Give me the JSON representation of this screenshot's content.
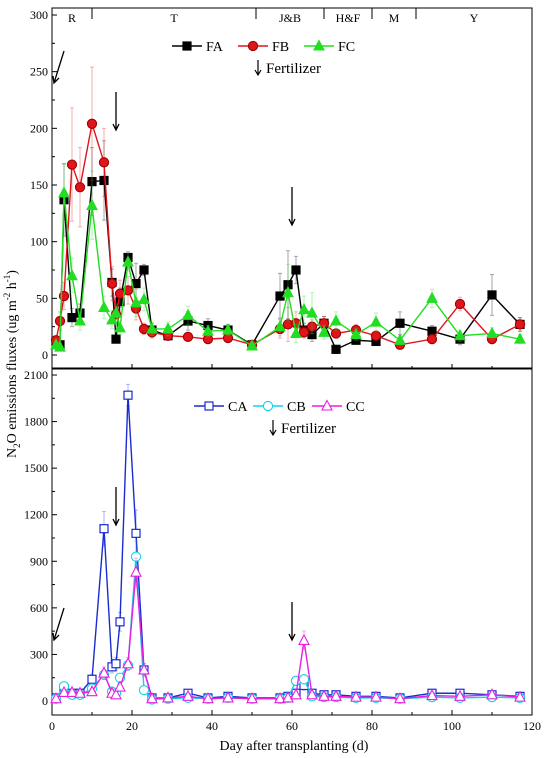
{
  "figure": {
    "ylabel": "N2O emissions fluxes (ug m-2 h-1)",
    "xlabel": "Day after transplanting (d)"
  },
  "chart_data": [
    {
      "type": "line",
      "panel": "top",
      "xlim": [
        0,
        120
      ],
      "ylim": [
        0,
        300
      ],
      "yticks": [
        0,
        50,
        100,
        150,
        200,
        250,
        300
      ],
      "xticks": [
        0,
        20,
        40,
        60,
        80,
        100,
        120
      ],
      "legend_position": "top-center",
      "stages": [
        {
          "label": "R",
          "start": 0,
          "end": 10
        },
        {
          "label": "T",
          "start": 10,
          "end": 51
        },
        {
          "label": "J&B",
          "start": 51,
          "end": 68
        },
        {
          "label": "H&F",
          "start": 68,
          "end": 80
        },
        {
          "label": "M",
          "start": 80,
          "end": 91
        },
        {
          "label": "Y",
          "start": 91,
          "end": 120
        }
      ],
      "fertilizer_label": "Fertilizer",
      "fertilizer_days": [
        0,
        16,
        60
      ],
      "series": [
        {
          "name": "FA",
          "color": "#000000",
          "marker": "square-filled",
          "x": [
            1,
            2,
            3,
            5,
            7,
            10,
            13,
            15,
            16,
            17,
            19,
            21,
            23,
            25,
            29,
            34,
            39,
            44,
            50,
            57,
            59,
            61,
            63,
            65,
            68,
            71,
            76,
            81,
            87,
            95,
            102,
            110,
            117
          ],
          "y": [
            12,
            9,
            137,
            33,
            37,
            153,
            154,
            64,
            14,
            47,
            86,
            63,
            75,
            22,
            17,
            30,
            26,
            22,
            9,
            52,
            62,
            75,
            22,
            18,
            28,
            5,
            13,
            12,
            28,
            21,
            14,
            53,
            27
          ],
          "err": [
            3,
            3,
            32,
            8,
            8,
            30,
            35,
            12,
            3,
            12,
            5,
            18,
            5,
            6,
            4,
            8,
            6,
            5,
            3,
            20,
            30,
            12,
            6,
            6,
            6,
            2,
            3,
            3,
            10,
            5,
            5,
            18,
            6
          ]
        },
        {
          "name": "FB",
          "color": "#e0141b",
          "marker": "circle-filled",
          "x": [
            1,
            2,
            3,
            5,
            7,
            10,
            13,
            15,
            16,
            17,
            19,
            21,
            23,
            25,
            29,
            34,
            39,
            44,
            50,
            57,
            59,
            61,
            63,
            65,
            68,
            71,
            76,
            81,
            87,
            95,
            102,
            110,
            117
          ],
          "y": [
            13,
            30,
            52,
            168,
            148,
            204,
            170,
            63,
            36,
            54,
            57,
            41,
            23,
            20,
            17,
            16,
            14,
            15,
            9,
            23,
            27,
            28,
            20,
            25,
            28,
            19,
            22,
            17,
            9,
            14,
            45,
            14,
            27
          ],
          "err": [
            3,
            8,
            12,
            50,
            35,
            50,
            30,
            15,
            8,
            12,
            12,
            10,
            5,
            5,
            4,
            4,
            3,
            4,
            3,
            8,
            15,
            10,
            5,
            6,
            6,
            4,
            5,
            4,
            3,
            4,
            6,
            4,
            6
          ]
        },
        {
          "name": "FC",
          "color": "#22dd22",
          "marker": "triangle-filled",
          "x": [
            1,
            2,
            3,
            5,
            7,
            10,
            13,
            15,
            16,
            17,
            19,
            21,
            23,
            25,
            29,
            34,
            39,
            44,
            50,
            57,
            59,
            61,
            63,
            65,
            68,
            71,
            76,
            81,
            87,
            95,
            102,
            110,
            117
          ],
          "y": [
            9,
            7,
            143,
            70,
            30,
            132,
            42,
            31,
            37,
            24,
            82,
            46,
            49,
            23,
            23,
            35,
            21,
            22,
            8,
            25,
            55,
            19,
            40,
            37,
            20,
            30,
            18,
            29,
            13,
            50,
            17,
            19,
            14
          ],
          "err": [
            3,
            3,
            25,
            15,
            8,
            30,
            10,
            8,
            8,
            6,
            8,
            12,
            10,
            6,
            6,
            8,
            5,
            5,
            3,
            8,
            25,
            8,
            12,
            18,
            6,
            8,
            5,
            8,
            4,
            8,
            5,
            5,
            4
          ]
        }
      ]
    },
    {
      "type": "line",
      "panel": "bottom",
      "xlim": [
        0,
        120
      ],
      "ylim": [
        0,
        2100
      ],
      "yticks": [
        0,
        300,
        600,
        900,
        1200,
        1500,
        1800,
        2100
      ],
      "xticks": [
        0,
        20,
        40,
        60,
        80,
        100,
        120
      ],
      "legend_position": "top-center",
      "fertilizer_label": "Fertilizer",
      "fertilizer_days": [
        0,
        16,
        60
      ],
      "series": [
        {
          "name": "CA",
          "color": "#1a2bd1",
          "marker": "square-open",
          "x": [
            1,
            3,
            5,
            7,
            10,
            13,
            15,
            16,
            17,
            19,
            21,
            23,
            25,
            29,
            34,
            39,
            44,
            50,
            57,
            59,
            61,
            63,
            65,
            68,
            71,
            76,
            81,
            87,
            95,
            102,
            110,
            117
          ],
          "y": [
            20,
            80,
            50,
            50,
            140,
            1110,
            220,
            240,
            510,
            1970,
            1080,
            200,
            20,
            20,
            50,
            20,
            30,
            20,
            20,
            30,
            50,
            100,
            50,
            40,
            40,
            30,
            30,
            20,
            50,
            50,
            40,
            30
          ],
          "err": [
            5,
            20,
            10,
            10,
            30,
            110,
            40,
            40,
            60,
            70,
            150,
            40,
            5,
            5,
            10,
            5,
            8,
            5,
            5,
            8,
            15,
            30,
            10,
            8,
            8,
            6,
            6,
            5,
            10,
            10,
            8,
            6
          ]
        },
        {
          "name": "CB",
          "color": "#10d4e6",
          "marker": "circle-open",
          "x": [
            1,
            3,
            5,
            7,
            10,
            13,
            15,
            16,
            17,
            19,
            21,
            23,
            25,
            29,
            34,
            39,
            44,
            50,
            57,
            59,
            61,
            63,
            65,
            68,
            71,
            76,
            81,
            87,
            95,
            102,
            110,
            117
          ],
          "y": [
            15,
            95,
            40,
            40,
            80,
            170,
            60,
            50,
            150,
            230,
            930,
            70,
            10,
            15,
            20,
            15,
            20,
            15,
            15,
            20,
            130,
            140,
            30,
            25,
            25,
            20,
            20,
            15,
            25,
            20,
            25,
            20
          ],
          "err": [
            4,
            20,
            8,
            8,
            15,
            30,
            12,
            10,
            25,
            35,
            100,
            15,
            3,
            4,
            5,
            4,
            5,
            4,
            4,
            5,
            30,
            30,
            8,
            6,
            6,
            5,
            5,
            4,
            6,
            5,
            6,
            5
          ]
        },
        {
          "name": "CC",
          "color": "#e81ee0",
          "marker": "triangle-open",
          "x": [
            1,
            3,
            5,
            7,
            10,
            13,
            15,
            16,
            17,
            19,
            21,
            23,
            25,
            29,
            34,
            39,
            44,
            50,
            57,
            59,
            61,
            63,
            65,
            68,
            71,
            76,
            81,
            87,
            95,
            102,
            110,
            117
          ],
          "y": [
            15,
            55,
            55,
            50,
            60,
            180,
            50,
            40,
            90,
            240,
            830,
            200,
            15,
            20,
            30,
            15,
            20,
            15,
            15,
            20,
            40,
            390,
            40,
            30,
            30,
            25,
            25,
            15,
            35,
            30,
            40,
            25
          ],
          "err": [
            4,
            12,
            12,
            10,
            12,
            40,
            10,
            8,
            20,
            40,
            90,
            40,
            4,
            5,
            8,
            4,
            5,
            4,
            4,
            5,
            10,
            60,
            10,
            8,
            8,
            6,
            6,
            4,
            8,
            8,
            8,
            6
          ]
        }
      ]
    }
  ]
}
